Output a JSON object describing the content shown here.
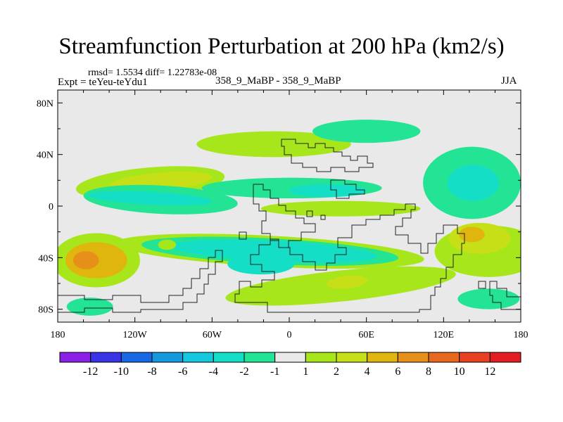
{
  "chart_data": {
    "type": "contour-map",
    "title": "Streamfunction Perturbation at 200 hPa (km2/s)",
    "stats_text": "rmsd= 1.5534 diff= 1.22783e-08",
    "experiment_text": "Expt = teYeu-teYdu1",
    "case_text": "358_9_MaBP - 358_9_MaBP",
    "season_text": "JJA",
    "xlim": [
      -180,
      180
    ],
    "ylim": [
      -90,
      90
    ],
    "x_ticks": [
      {
        "value": -180,
        "label": "180"
      },
      {
        "value": -120,
        "label": "120W"
      },
      {
        "value": -60,
        "label": "60W"
      },
      {
        "value": 0,
        "label": "0"
      },
      {
        "value": 60,
        "label": "60E"
      },
      {
        "value": 120,
        "label": "120E"
      },
      {
        "value": 180,
        "label": "180"
      }
    ],
    "y_ticks": [
      {
        "value": 80,
        "label": "80N"
      },
      {
        "value": 40,
        "label": "40N"
      },
      {
        "value": 0,
        "label": "0"
      },
      {
        "value": -40,
        "label": "40S"
      },
      {
        "value": -80,
        "label": "80S"
      }
    ],
    "colorbar": {
      "levels": [
        "-12",
        "-10",
        "-8",
        "-6",
        "-4",
        "-2",
        "-1",
        "1",
        "2",
        "4",
        "6",
        "8",
        "10",
        "12"
      ],
      "colors": [
        "#8b21e6",
        "#3a34e8",
        "#1867e3",
        "#1499de",
        "#14c8dd",
        "#14dfc6",
        "#22e494",
        "#e9e9e9",
        "#a6e61b",
        "#c7df16",
        "#dfb50e",
        "#e6901a",
        "#e8681f",
        "#e84020",
        "#e41e20"
      ]
    },
    "regions": [
      {
        "cx": -150,
        "cy": -42,
        "rx": 34,
        "ry": 21,
        "level": 1
      },
      {
        "cx": -150,
        "cy": -42,
        "rx": 24,
        "ry": 14,
        "level": 3
      },
      {
        "cx": -158,
        "cy": -42,
        "rx": 10,
        "ry": 7,
        "level": 4
      },
      {
        "cx": -108,
        "cy": 18,
        "rx": 58,
        "ry": 12,
        "level": 1,
        "rot": -5
      },
      {
        "cx": -100,
        "cy": 19,
        "rx": 40,
        "ry": 7,
        "level": 2,
        "rot": -5
      },
      {
        "cx": -100,
        "cy": 13,
        "rx": 5,
        "ry": 2,
        "level": 3
      },
      {
        "cx": -100,
        "cy": 5,
        "rx": 60,
        "ry": 11,
        "level": -1,
        "rot": 3
      },
      {
        "cx": -108,
        "cy": 6,
        "rx": 48,
        "ry": 5,
        "level": -2,
        "rot": 3
      },
      {
        "cx": -155,
        "cy": -78,
        "rx": 18,
        "ry": 7,
        "level": -1
      },
      {
        "cx": -15,
        "cy": -35,
        "rx": 120,
        "ry": 12,
        "level": 1,
        "rot": 3
      },
      {
        "cx": -15,
        "cy": -35,
        "rx": 100,
        "ry": 10,
        "level": -1,
        "rot": 3
      },
      {
        "cx": -12,
        "cy": -35,
        "rx": 80,
        "ry": 8,
        "level": -2,
        "rot": 3
      },
      {
        "cx": -22,
        "cy": -45,
        "rx": 26,
        "ry": 8,
        "level": -2
      },
      {
        "cx": 2,
        "cy": 14,
        "rx": 70,
        "ry": 8,
        "level": -1
      },
      {
        "cx": 30,
        "cy": 12,
        "rx": 30,
        "ry": 5,
        "level": -2
      },
      {
        "cx": 40,
        "cy": -2,
        "rx": 62,
        "ry": 6,
        "level": 1
      },
      {
        "cx": -12,
        "cy": 48,
        "rx": 60,
        "ry": 10,
        "level": 1
      },
      {
        "cx": 60,
        "cy": 58,
        "rx": 42,
        "ry": 9,
        "level": -1
      },
      {
        "cx": 40,
        "cy": -62,
        "rx": 90,
        "ry": 12,
        "level": 1,
        "rot": -6
      },
      {
        "cx": 45,
        "cy": -59,
        "rx": 16,
        "ry": 5,
        "level": 2,
        "rot": -6
      },
      {
        "cx": 142,
        "cy": 18,
        "rx": 38,
        "ry": 28,
        "level": -1
      },
      {
        "cx": 143,
        "cy": 18,
        "rx": 20,
        "ry": 14,
        "level": -2
      },
      {
        "cx": 155,
        "cy": -35,
        "rx": 42,
        "ry": 20,
        "level": 1
      },
      {
        "cx": 148,
        "cy": -25,
        "rx": 24,
        "ry": 12,
        "level": 2
      },
      {
        "cx": 142,
        "cy": -22,
        "rx": 10,
        "ry": 6,
        "level": 3
      },
      {
        "cx": 155,
        "cy": -72,
        "rx": 24,
        "ry": 8,
        "level": -1
      },
      {
        "cx": -95,
        "cy": -30,
        "rx": 7,
        "ry": 4,
        "level": 1
      }
    ]
  }
}
